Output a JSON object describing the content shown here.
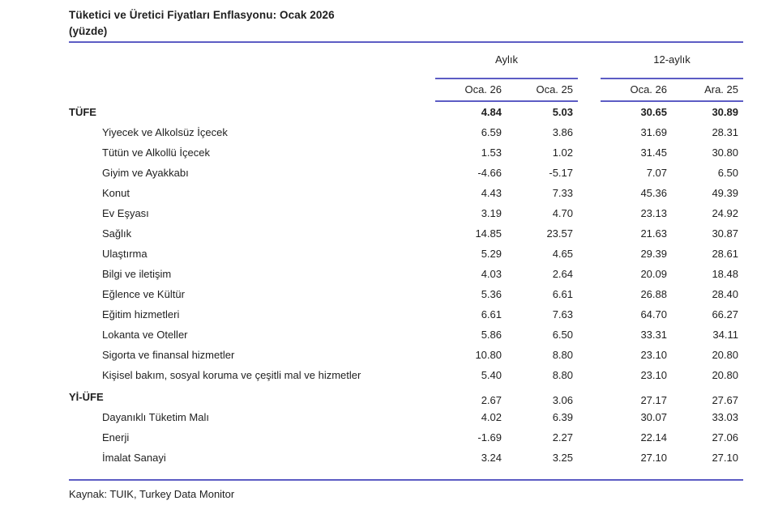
{
  "header": {
    "title": "Tüketici ve Üretici Fiyatları Enflasyonu: Ocak 2026",
    "subtitle": "(yüzde)"
  },
  "table": {
    "groups": [
      {
        "label": "Aylık",
        "columns": [
          "Oca. 26",
          "Oca. 25"
        ]
      },
      {
        "label": "12-aylık",
        "columns": [
          "Oca. 26",
          "Ara. 25"
        ]
      }
    ],
    "rows": [
      {
        "label": "TÜFE",
        "emphasis": "all",
        "indent": false,
        "values": [
          "4.84",
          "5.03",
          "30.65",
          "30.89"
        ]
      },
      {
        "label": "Yiyecek ve Alkolsüz İçecek",
        "indent": true,
        "values": [
          "6.59",
          "3.86",
          "31.69",
          "28.31"
        ]
      },
      {
        "label": "Tütün ve Alkollü İçecek",
        "indent": true,
        "values": [
          "1.53",
          "1.02",
          "31.45",
          "30.80"
        ]
      },
      {
        "label": "Giyim ve Ayakkabı",
        "indent": true,
        "values": [
          "-4.66",
          "-5.17",
          "7.07",
          "6.50"
        ]
      },
      {
        "label": "Konut",
        "indent": true,
        "values": [
          "4.43",
          "7.33",
          "45.36",
          "49.39"
        ]
      },
      {
        "label": "Ev Eşyası",
        "indent": true,
        "values": [
          "3.19",
          "4.70",
          "23.13",
          "24.92"
        ]
      },
      {
        "label": "Sağlık",
        "indent": true,
        "values": [
          "14.85",
          "23.57",
          "21.63",
          "30.87"
        ]
      },
      {
        "label": "Ulaştırma",
        "indent": true,
        "values": [
          "5.29",
          "4.65",
          "29.39",
          "28.61"
        ]
      },
      {
        "label": "Bilgi ve iletişim",
        "indent": true,
        "values": [
          "4.03",
          "2.64",
          "20.09",
          "18.48"
        ]
      },
      {
        "label": "Eğlence ve Kültür",
        "indent": true,
        "values": [
          "5.36",
          "6.61",
          "26.88",
          "28.40"
        ]
      },
      {
        "label": "Eğitim hizmetleri",
        "indent": true,
        "values": [
          "6.61",
          "7.63",
          "64.70",
          "66.27"
        ]
      },
      {
        "label": "Lokanta ve Oteller",
        "indent": true,
        "values": [
          "5.86",
          "6.50",
          "33.31",
          "34.11"
        ]
      },
      {
        "label": "Sigorta ve finansal hizmetler",
        "indent": true,
        "values": [
          "10.80",
          "8.80",
          "23.10",
          "20.80"
        ]
      },
      {
        "label": "Kişisel bakım, sosyal koruma ve çeşitli mal ve hizmetler",
        "indent": true,
        "values": [
          "5.40",
          "8.80",
          "23.10",
          "20.80"
        ]
      },
      {
        "label": "Yİ-ÜFE",
        "emphasis": "label",
        "indent": false,
        "values": [
          "2.67",
          "3.06",
          "27.17",
          "27.67"
        ]
      },
      {
        "label": "Dayanıklı Tüketim Malı",
        "indent": true,
        "values": [
          "4.02",
          "6.39",
          "30.07",
          "33.03"
        ]
      },
      {
        "label": "Enerji",
        "indent": true,
        "values": [
          "-1.69",
          "2.27",
          "22.14",
          "27.06"
        ]
      },
      {
        "label": "İmalat Sanayi",
        "indent": true,
        "values": [
          "3.24",
          "3.25",
          "27.10",
          "27.10"
        ]
      }
    ]
  },
  "footer": {
    "source": "Kaynak: TUIK, Turkey Data Monitor"
  },
  "colors": {
    "rule": "#5c5cc4",
    "text": "#1f1f1f"
  }
}
